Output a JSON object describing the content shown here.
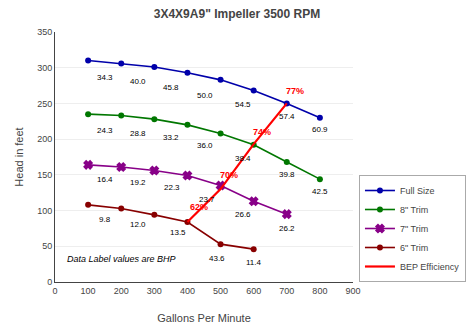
{
  "chart_data": {
    "type": "line",
    "title": "3X4X9A9\" Impeller 3500 RPM",
    "x_label": "Gallons Per Minute",
    "y_label": "Head in feet",
    "xlim": [
      0,
      900
    ],
    "ylim": [
      0,
      350
    ],
    "xticks": [
      0,
      100,
      200,
      300,
      400,
      500,
      600,
      700,
      800,
      900
    ],
    "yticks": [
      0,
      50,
      100,
      150,
      200,
      250,
      300,
      350
    ],
    "grid": "y",
    "legend": "lower right",
    "annotations": [
      {
        "text": "Data Label values are BHP",
        "x": 30,
        "y": 22
      }
    ],
    "series": [
      {
        "name": "Full Size",
        "color": "#0000AA",
        "marker": "o",
        "x": [
          100,
          200,
          300,
          400,
          500,
          600,
          700,
          800
        ],
        "values": [
          310,
          306,
          301,
          293,
          283,
          268,
          250,
          230
        ],
        "annotations": [
          {
            "text": "34.3",
            "x": 150,
            "y": 295,
            "color": "black"
          },
          {
            "text": "40.0",
            "x": 252,
            "y": 290,
            "color": "black"
          },
          {
            "text": "45.8",
            "x": 350,
            "y": 282,
            "color": "black"
          },
          {
            "text": "50.0",
            "x": 452,
            "y": 270,
            "color": "black"
          },
          {
            "text": "54.5",
            "x": 568,
            "y": 257,
            "color": "black"
          },
          {
            "text": "57.4",
            "x": 700,
            "y": 241,
            "color": "black"
          },
          {
            "text": "60.9",
            "x": 800,
            "y": 222,
            "color": "black"
          }
        ]
      },
      {
        "name": "8\" Trim",
        "color": "#007700",
        "marker": "o",
        "x": [
          100,
          200,
          300,
          400,
          500,
          600,
          700,
          800
        ],
        "values": [
          235,
          233,
          228,
          220,
          208,
          192,
          168,
          144
        ],
        "annotations": [
          {
            "text": "24.3",
            "x": 150,
            "y": 221,
            "color": "black"
          },
          {
            "text": "28.8",
            "x": 252,
            "y": 217,
            "color": "black"
          },
          {
            "text": "33.2",
            "x": 350,
            "y": 211,
            "color": "black"
          },
          {
            "text": "36.0",
            "x": 452,
            "y": 200,
            "color": "black"
          },
          {
            "text": "38.4",
            "x": 568,
            "y": 182,
            "color": "black"
          },
          {
            "text": "39.8",
            "x": 700,
            "y": 160,
            "color": "black"
          },
          {
            "text": "42.5",
            "x": 800,
            "y": 136,
            "color": "black"
          }
        ]
      },
      {
        "name": "7\" Trim",
        "color": "#880088",
        "marker": "x",
        "x": [
          100,
          200,
          300,
          400,
          500,
          600,
          700
        ],
        "values": [
          164,
          161,
          156,
          149,
          135,
          113,
          95
        ],
        "annotations": [
          {
            "text": "16.4",
            "x": 150,
            "y": 152,
            "color": "black"
          },
          {
            "text": "19.2",
            "x": 252,
            "y": 148,
            "color": "black"
          },
          {
            "text": "22.3",
            "x": 352,
            "y": 141,
            "color": "black"
          },
          {
            "text": "23.7",
            "x": 458,
            "y": 124,
            "color": "black"
          },
          {
            "text": "26.6",
            "x": 568,
            "y": 104,
            "color": "black"
          },
          {
            "text": "26.2",
            "x": 700,
            "y": 84,
            "color": "black"
          }
        ]
      },
      {
        "name": "6\" Trim",
        "color": "#880000",
        "marker": "o",
        "x": [
          100,
          200,
          300,
          400,
          500,
          600
        ],
        "values": [
          108,
          103,
          94,
          84,
          53,
          46
        ],
        "annotations": [
          {
            "text": "9.8",
            "x": 150,
            "y": 97,
            "color": "black"
          },
          {
            "text": "12.0",
            "x": 252,
            "y": 89,
            "color": "black"
          },
          {
            "text": "13.5",
            "x": 372,
            "y": 78,
            "color": "black"
          },
          {
            "text": "43.6",
            "x": 490,
            "y": 42,
            "color": "black"
          },
          {
            "text": "11.4",
            "x": 600,
            "y": 37,
            "color": "black"
          }
        ]
      },
      {
        "name": "BEP Efficiency",
        "color": "#FF0000",
        "line_style": "solid",
        "x": [
          400,
          500,
          600,
          700
        ],
        "values": [
          84,
          130,
          193,
          250
        ],
        "annotations": [
          {
            "text": "62%",
            "x": 402,
            "y": 95,
            "color": "#FF0000"
          },
          {
            "text": "70%",
            "x": 492,
            "y": 140,
            "color": "#FF0000"
          },
          {
            "text": "74%",
            "x": 592,
            "y": 200,
            "color": "#FF0000"
          },
          {
            "text": "77%",
            "x": 692,
            "y": 258,
            "color": "#FF0000"
          }
        ]
      }
    ]
  }
}
